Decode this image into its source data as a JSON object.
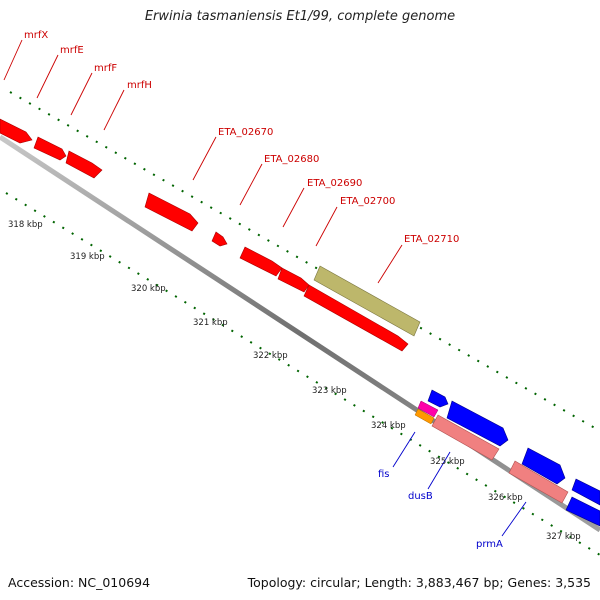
{
  "title": "Erwinia tasmaniensis Et1/99, complete genome",
  "footer": {
    "accession": "Accession: NC_010694",
    "topology": "Topology: circular; Length: 3,883,467 bp; Genes: 3,535"
  },
  "colors": {
    "forward_gene": "#ff0000",
    "reverse_gene": "#0000ff",
    "pseudo_gene": "#bdb76b",
    "rna_gene": "#f08080",
    "tick": "#006400",
    "backbone": "#808080",
    "forward_label": "#cc0000",
    "reverse_label": "#0000cc"
  },
  "kbp_labels": [
    "318 kbp",
    "319 kbp",
    "320 kbp",
    "321 kbp",
    "322 kbp",
    "323 kbp",
    "324 kbp",
    "325 kbp",
    "326 kbp",
    "327 kbp"
  ],
  "forward_labels": [
    "mrfX",
    "mrfE",
    "mrfF",
    "mrfH",
    "ETA_02670",
    "ETA_02680",
    "ETA_02690",
    "ETA_02700",
    "ETA_02710"
  ],
  "reverse_labels": [
    "fis",
    "dusB",
    "prmA"
  ]
}
